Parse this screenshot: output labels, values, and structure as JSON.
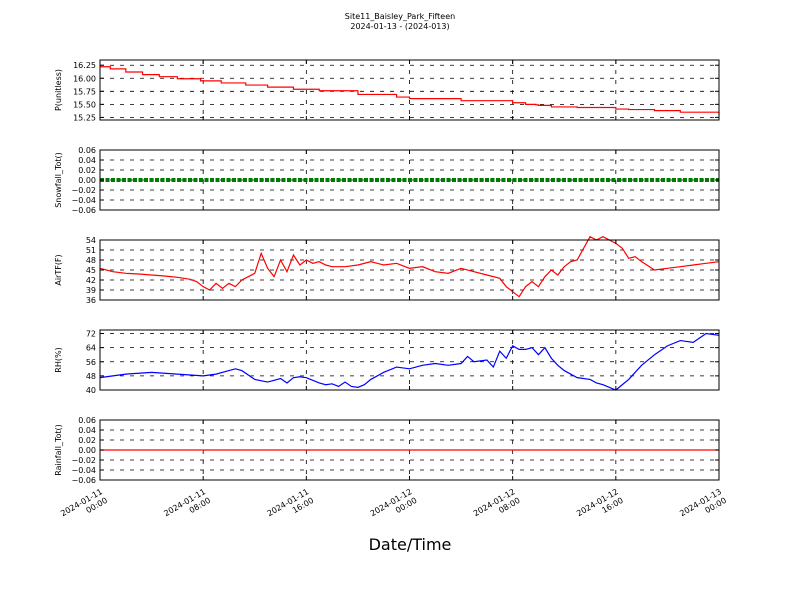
{
  "title": "Site11_Baisley_Park_Fifteen",
  "subtitle": "2024-01-13 - (2024-013)",
  "xlabel": "Date/Time",
  "x_ticks": [
    {
      "t": 0,
      "line1": "2024-01-11",
      "line2": "00:00"
    },
    {
      "t": 8,
      "line1": "2024-01-11",
      "line2": "08:00"
    },
    {
      "t": 16,
      "line1": "2024-01-11",
      "line2": "16:00"
    },
    {
      "t": 24,
      "line1": "2024-01-12",
      "line2": "00:00"
    },
    {
      "t": 32,
      "line1": "2024-01-12",
      "line2": "08:00"
    },
    {
      "t": 40,
      "line1": "2024-01-12",
      "line2": "16:00"
    },
    {
      "t": 48,
      "line1": "2024-01-13",
      "line2": "00:00"
    }
  ],
  "chart_data": [
    {
      "type": "line",
      "ylabel": "P(unitless)",
      "ylim": [
        15.2,
        16.35
      ],
      "yticks": [
        "15.25",
        "15.50",
        "15.75",
        "16.00",
        "16.25"
      ],
      "ytick_values": [
        15.25,
        15.5,
        15.75,
        16.0,
        16.25
      ],
      "color": "#ff0000",
      "grid": true,
      "step": true,
      "series": {
        "x": [
          0,
          0.8,
          2,
          3.3,
          4.6,
          6,
          7.8,
          9.4,
          11.3,
          13,
          15,
          17,
          20,
          23,
          24,
          27,
          28,
          32,
          33,
          33.8,
          34,
          35,
          37,
          39,
          40,
          41,
          42,
          43,
          45,
          47,
          48
        ],
        "y": [
          16.22,
          16.18,
          16.12,
          16.07,
          16.03,
          15.99,
          15.95,
          15.91,
          15.87,
          15.83,
          15.79,
          15.76,
          15.69,
          15.64,
          15.61,
          15.61,
          15.57,
          15.53,
          15.5,
          15.49,
          15.48,
          15.45,
          15.44,
          15.44,
          15.41,
          15.4,
          15.4,
          15.38,
          15.35,
          15.35,
          15.31
        ]
      }
    },
    {
      "type": "line",
      "ylabel": "Snowfall_Tot()",
      "ylim": [
        -0.06,
        0.06
      ],
      "yticks": [
        "−0.06",
        "−0.04",
        "−0.02",
        "0.00",
        "0.02",
        "0.04",
        "0.06"
      ],
      "ytick_values": [
        -0.06,
        -0.04,
        -0.02,
        0.0,
        0.02,
        0.04,
        0.06
      ],
      "color": "#007a00",
      "grid": true,
      "markers": true,
      "series": {
        "x": [
          0,
          48
        ],
        "y": [
          0,
          0
        ]
      }
    },
    {
      "type": "line",
      "ylabel": "AirTF(F)",
      "ylim": [
        36,
        54
      ],
      "yticks": [
        "36",
        "39",
        "42",
        "45",
        "48",
        "51",
        "54"
      ],
      "ytick_values": [
        36,
        39,
        42,
        45,
        48,
        51,
        54
      ],
      "color": "#ff0000",
      "grid": true,
      "series": {
        "x": [
          0,
          1,
          2,
          3,
          4,
          5,
          6,
          7,
          7.5,
          8,
          8.5,
          9,
          9.5,
          10,
          10.5,
          11,
          11.5,
          12,
          12.5,
          13,
          13.5,
          14,
          14.5,
          15,
          15.5,
          16,
          16.5,
          17,
          17.5,
          18,
          19,
          20,
          21,
          22,
          23,
          24,
          25,
          26,
          27,
          28,
          29,
          30,
          31,
          31.5,
          32,
          32.5,
          33,
          33.5,
          34,
          34.5,
          35,
          35.5,
          36,
          36.5,
          37,
          38,
          38.5,
          39,
          40,
          40.5,
          41,
          41.5,
          42,
          43,
          44,
          45,
          46,
          47,
          48
        ],
        "y": [
          45.5,
          44.5,
          44,
          43.8,
          43.5,
          43.2,
          42.8,
          42.2,
          41.5,
          40,
          39,
          41,
          39.5,
          41,
          40,
          42,
          43,
          44,
          50,
          45.5,
          43,
          48,
          44.5,
          49.5,
          46.5,
          48,
          47,
          47.5,
          46.5,
          46,
          46,
          46.5,
          47.5,
          46.5,
          47,
          45.5,
          46,
          44.5,
          44,
          45.5,
          44.5,
          43.5,
          42.5,
          40,
          38.5,
          37,
          40,
          41.5,
          40,
          43,
          45,
          43.5,
          46,
          47.5,
          48,
          55,
          54,
          55,
          53,
          51.5,
          48.5,
          49,
          47.5,
          45,
          45.5,
          46,
          46.5,
          47,
          47.5
        ]
      }
    },
    {
      "type": "line",
      "ylabel": "RH(%)",
      "ylim": [
        40,
        74
      ],
      "yticks": [
        "40",
        "48",
        "56",
        "64",
        "72"
      ],
      "ytick_values": [
        40,
        48,
        56,
        64,
        72
      ],
      "color": "#0000ff",
      "grid": true,
      "series": {
        "x": [
          0,
          1,
          2,
          3,
          4,
          5,
          6,
          7,
          8,
          9,
          10,
          10.5,
          11,
          12,
          13,
          13.5,
          14,
          14.5,
          15,
          15.5,
          16,
          17,
          17.5,
          18,
          18.5,
          19,
          19.5,
          20,
          20.5,
          21,
          22,
          23,
          24,
          25,
          26,
          27,
          28,
          28.5,
          29,
          30,
          30.5,
          31,
          31.5,
          32,
          32.5,
          33,
          33.5,
          34,
          34.5,
          35,
          35.5,
          36,
          37,
          38,
          38.5,
          39,
          40,
          41,
          42,
          43,
          44,
          45,
          46,
          47,
          48
        ],
        "y": [
          47,
          48,
          49,
          49.5,
          50,
          49.5,
          49,
          48.5,
          48,
          49,
          51,
          52,
          51,
          46,
          44.5,
          45.5,
          46.5,
          44,
          47,
          47.5,
          47,
          44,
          43,
          43.5,
          42,
          44.5,
          42,
          41.5,
          43,
          46,
          50,
          53,
          52,
          54,
          55,
          54,
          55,
          59,
          56,
          57,
          53,
          62,
          58,
          65,
          63,
          63,
          64,
          60,
          64,
          58,
          54,
          51,
          47,
          46,
          44,
          43,
          40,
          46,
          54,
          60,
          65,
          68,
          67,
          72,
          71
        ]
      }
    },
    {
      "type": "line",
      "ylabel": "Rainfall_Tot()",
      "ylim": [
        -0.06,
        0.06
      ],
      "yticks": [
        "−0.06",
        "−0.04",
        "−0.02",
        "0.00",
        "0.02",
        "0.04",
        "0.06"
      ],
      "ytick_values": [
        -0.06,
        -0.04,
        -0.02,
        0.0,
        0.02,
        0.04,
        0.06
      ],
      "color": "#ff0000",
      "grid": true,
      "series": {
        "x": [
          0,
          48
        ],
        "y": [
          0,
          0
        ]
      }
    }
  ]
}
